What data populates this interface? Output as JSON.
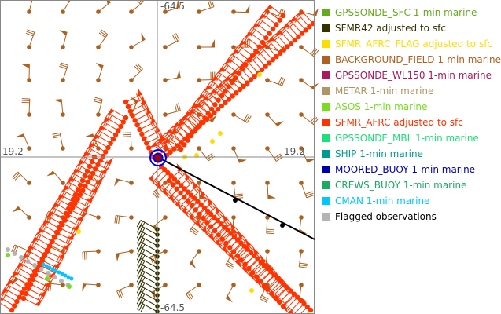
{
  "map": {
    "axis_labels": {
      "lon_top": "-64.5",
      "lon_bottom": "-64.5",
      "lat_left": "19.2",
      "lat_right": "19.2"
    },
    "grid_color": "#888888",
    "storm_center_icon": "storm-center-icon",
    "track_color": "#000000"
  },
  "legend": {
    "items": [
      {
        "label": "GPSSONDE_SFC 1-min marine",
        "color": "#66aa1e"
      },
      {
        "label": "SFMR42 adjusted to sfc",
        "color": "#333300"
      },
      {
        "label": "SFMR_AFRC_FLAG adjusted to sfc",
        "color": "#ffdd00"
      },
      {
        "label": "BACKGROUND_FIELD 1-min marine",
        "color": "#b0601e"
      },
      {
        "label": "GPSSONDE_WL150 1-min marine",
        "color": "#aa1a60"
      },
      {
        "label": "METAR 1-min marine",
        "color": "#b09464"
      },
      {
        "label": "ASOS 1-min marine",
        "color": "#77dd1e"
      },
      {
        "label": "SFMR_AFRC adjusted to sfc",
        "color": "#ff3300"
      },
      {
        "label": "GPSSONDE_MBL 1-min marine",
        "color": "#1ee07a"
      },
      {
        "label": "SHIP 1-min marine",
        "color": "#009a8e"
      },
      {
        "label": "MOORED_BUOY 1-min marine",
        "color": "#0000aa"
      },
      {
        "label": "CREWS_BUOY 1-min marine",
        "color": "#1aaa64"
      },
      {
        "label": "CMAN 1-min marine",
        "color": "#00c8ff"
      },
      {
        "label": "Flagged observations",
        "color": "#b4b4b4",
        "text_color": "#000000"
      }
    ]
  }
}
